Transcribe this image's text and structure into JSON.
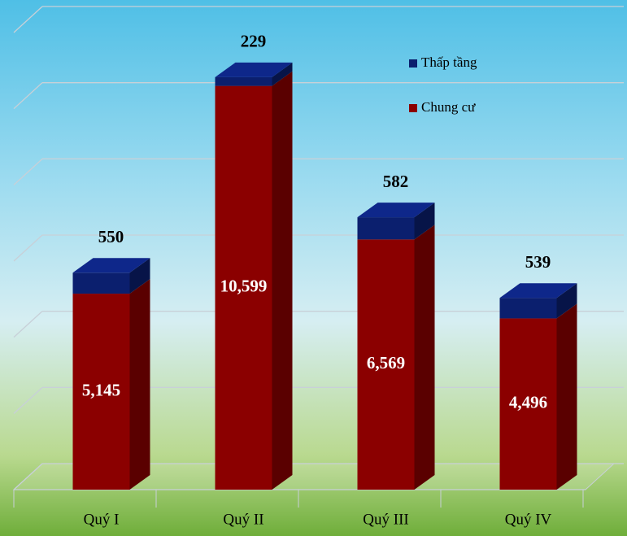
{
  "chart_data": {
    "type": "bar",
    "stacked": true,
    "categories": [
      "Quý I",
      "Quý II",
      "Quý III",
      "Quý IV"
    ],
    "series": [
      {
        "name": "Chung cư",
        "color": "#8b0000",
        "values": [
          5145,
          10599,
          6569,
          4496
        ],
        "value_labels": [
          "5,145",
          "10,599",
          "6,569",
          "4,496"
        ]
      },
      {
        "name": "Thấp tầng",
        "color": "#0b1f6e",
        "values": [
          550,
          229,
          582,
          539
        ]
      }
    ],
    "ylim": [
      0,
      12000
    ],
    "yticks": [
      0,
      2000,
      4000,
      6000,
      8000,
      10000,
      12000
    ],
    "grid": true
  }
}
